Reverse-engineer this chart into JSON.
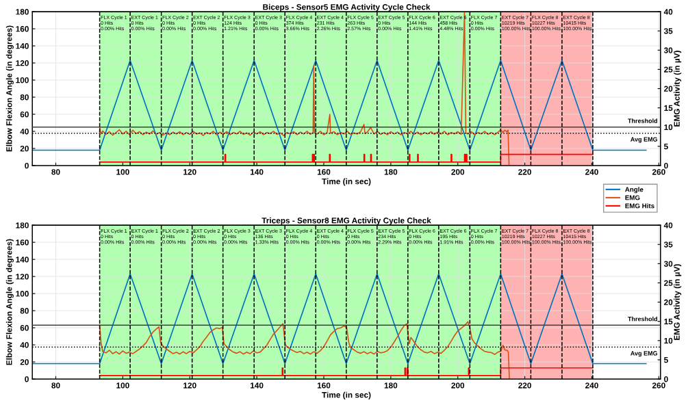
{
  "chart_data": [
    {
      "type": "line",
      "title": "Biceps - Sensor5 EMG Activity Cycle Check",
      "xlabel": "Time (in sec)",
      "ylabel": "Elbow Flexion Angle (in degrees)",
      "y2label": "EMG Activity (in µV)",
      "xlim": [
        73,
        260.5
      ],
      "xticks": [
        80,
        100,
        120,
        140,
        160,
        180,
        200,
        220,
        240,
        260
      ],
      "ylim": [
        0,
        180
      ],
      "yticks": [
        0,
        20,
        40,
        60,
        80,
        100,
        120,
        140,
        160,
        180
      ],
      "y2lim": [
        0,
        40
      ],
      "y2ticks": [
        0,
        5,
        10,
        15,
        20,
        25,
        30,
        35,
        40
      ],
      "grid": true,
      "legend": "bottom right",
      "marker": "none",
      "line_style": "solid",
      "series": [
        {
          "name": "Angle",
          "color": "#0072bd",
          "axis": "y",
          "x": [
            73,
            93.1,
            102.2,
            111.5,
            120.7,
            129.9,
            139.2,
            148.4,
            157.6,
            166.7,
            175.9,
            185.1,
            194.3,
            203.6,
            212.8,
            221.8,
            231.1,
            240.3,
            256.2
          ],
          "values": [
            18,
            18,
            123,
            18,
            123,
            18,
            123,
            18,
            123,
            18,
            123,
            18,
            123,
            18,
            123,
            18,
            123,
            18,
            18
          ]
        },
        {
          "name": "EMG",
          "color": "#d95319",
          "axis": "y2",
          "x": [
            93.1,
            93.4,
            94,
            95,
            96,
            97,
            98,
            99,
            100,
            101,
            102,
            103,
            104,
            105,
            106,
            107,
            108,
            109,
            110,
            111,
            112,
            113,
            114,
            115,
            116,
            117,
            118,
            119,
            120,
            121,
            122,
            123,
            124,
            125,
            126,
            127,
            128,
            129,
            130,
            131,
            132,
            133,
            134,
            135,
            136,
            137,
            138,
            139,
            140,
            141,
            142,
            143,
            144,
            145,
            146,
            147,
            148,
            149,
            150,
            151,
            152,
            153,
            154,
            155,
            156,
            156.8,
            157,
            157.2,
            158,
            159,
            160,
            161,
            161.8,
            162,
            163,
            164,
            165,
            166,
            167,
            168,
            169,
            170,
            171,
            172,
            172.3,
            173,
            174,
            175,
            176,
            177,
            178,
            179,
            180,
            181,
            182,
            183,
            184,
            185,
            186,
            187,
            188,
            189,
            190,
            191,
            192,
            193,
            194,
            195,
            196,
            197,
            198,
            199,
            200,
            201,
            202,
            202.4,
            203,
            204,
            205,
            206,
            207,
            208,
            209,
            210,
            211,
            212,
            212.8,
            213.5,
            214,
            214.6,
            215,
            215.3,
            240.3
          ],
          "values": [
            10.0,
            8.2,
            9.0,
            8.1,
            8.8,
            7.9,
            8.6,
            9.3,
            8.2,
            8.9,
            8.0,
            9.2,
            8.3,
            8.8,
            8.0,
            8.7,
            8.2,
            9.0,
            8.1,
            8.6,
            7.9,
            8.5,
            8.0,
            8.7,
            8.2,
            8.8,
            8.0,
            8.6,
            8.1,
            8.9,
            8.2,
            8.5,
            7.8,
            8.6,
            8.2,
            8.9,
            8.0,
            8.7,
            8.1,
            8.8,
            8.0,
            8.6,
            8.2,
            8.9,
            8.1,
            8.5,
            7.9,
            8.7,
            8.2,
            8.8,
            8.0,
            8.6,
            8.3,
            8.9,
            8.1,
            8.5,
            7.8,
            8.6,
            8.2,
            8.8,
            8.0,
            8.7,
            8.2,
            8.9,
            8.1,
            8.6,
            25.8,
            8.5,
            8.2,
            8.9,
            8.0,
            8.6,
            13.3,
            8.4,
            8.8,
            8.0,
            8.6,
            8.2,
            8.9,
            8.1,
            8.5,
            8.2,
            8.8,
            10.7,
            8.3,
            8.7,
            9.9,
            8.2,
            8.9,
            8.1,
            8.6,
            8.0,
            8.8,
            8.2,
            8.7,
            8.0,
            8.6,
            8.2,
            8.9,
            8.1,
            8.7,
            8.0,
            8.6,
            8.2,
            8.8,
            8.1,
            8.7,
            8.2,
            8.9,
            8.0,
            8.6,
            8.2,
            8.8,
            8.1,
            40,
            8.5,
            8.2,
            8.8,
            8.0,
            8.6,
            8.2,
            8.9,
            8.1,
            8.6,
            8.0,
            8.7,
            9.3,
            8.6,
            9.2,
            8.8,
            9.2,
            0,
            0
          ]
        },
        {
          "name": "EMG Hits",
          "color": "#ff0000",
          "axis": "y2",
          "x": [
            93.1,
            130.5,
            130.5,
            130.7,
            130.7,
            156.6,
            156.6,
            156.8,
            156.8,
            157.0,
            157.0,
            157.2,
            157.2,
            161.7,
            161.7,
            161.9,
            161.9,
            172.0,
            172.0,
            172.2,
            172.2,
            174.0,
            174.0,
            174.2,
            174.2,
            185.5,
            185.5,
            185.7,
            185.7,
            188.0,
            188.0,
            188.2,
            188.2,
            198.0,
            198.0,
            198.2,
            198.2,
            202.0,
            202.0,
            202.2,
            202.2,
            202.5,
            202.5,
            202.7,
            202.7,
            212.8,
            212.8,
            240.3
          ],
          "values": [
            0.9,
            0.9,
            2.9,
            2.9,
            0.9,
            0.9,
            2.9,
            2.9,
            0.9,
            0.9,
            2.9,
            2.9,
            0.9,
            0.9,
            2.9,
            2.9,
            0.9,
            0.9,
            2.9,
            2.9,
            0.9,
            0.9,
            2.9,
            2.9,
            0.9,
            0.9,
            2.9,
            2.9,
            0.9,
            0.9,
            2.9,
            2.9,
            0.9,
            0.9,
            2.9,
            2.9,
            0.9,
            0.9,
            2.9,
            2.9,
            0.9,
            0.9,
            2.9,
            2.9,
            0.9,
            0.9,
            2.9,
            2.9
          ]
        }
      ],
      "bands": [
        {
          "axis": "x",
          "from": 93.1,
          "to": 102.2,
          "color": "#00ff00",
          "label": "FLX Cycle 1\n0 Hits\n0.00% Hits"
        },
        {
          "axis": "x",
          "from": 102.2,
          "to": 111.5,
          "color": "#00ff00",
          "label": "EXT Cycle 1\n0 Hits\n0.00% Hits"
        },
        {
          "axis": "x",
          "from": 111.5,
          "to": 120.7,
          "color": "#00ff00",
          "label": "FLX Cycle 2\n0 Hits\n0.00% Hits"
        },
        {
          "axis": "x",
          "from": 120.7,
          "to": 129.9,
          "color": "#00ff00",
          "label": "EXT Cycle 2\n0 Hits\n0.00% Hits"
        },
        {
          "axis": "x",
          "from": 129.9,
          "to": 139.2,
          "color": "#00ff00",
          "label": "FLX Cycle 3\n124 Hits\n1.21% Hits"
        },
        {
          "axis": "x",
          "from": 139.2,
          "to": 148.4,
          "color": "#00ff00",
          "label": "EXT Cycle 3\n0 Hits\n0.00% Hits"
        },
        {
          "axis": "x",
          "from": 148.4,
          "to": 157.6,
          "color": "#00ff00",
          "label": "FLX Cycle 4\n374 Hits\n3.66% Hits"
        },
        {
          "axis": "x",
          "from": 157.6,
          "to": 166.7,
          "color": "#00ff00",
          "label": "EXT Cycle 4\n231 Hits\n2.26% Hits"
        },
        {
          "axis": "x",
          "from": 166.7,
          "to": 175.9,
          "color": "#00ff00",
          "label": "FLX Cycle 5\n263 Hits\n2.57% Hits"
        },
        {
          "axis": "x",
          "from": 175.9,
          "to": 185.1,
          "color": "#00ff00",
          "label": "EXT Cycle 5\n0 Hits\n0.00% Hits"
        },
        {
          "axis": "x",
          "from": 185.1,
          "to": 194.3,
          "color": "#00ff00",
          "label": "FLX Cycle 6\n144 Hits\n1.41% Hits"
        },
        {
          "axis": "x",
          "from": 194.3,
          "to": 203.6,
          "color": "#00ff00",
          "label": "EXT Cycle 6\n458 Hits\n4.48% Hits"
        },
        {
          "axis": "x",
          "from": 203.6,
          "to": 212.8,
          "color": "#00ff00",
          "label": "FLX Cycle 7\n0 Hits\n0.00% Hits"
        },
        {
          "axis": "x",
          "from": 212.8,
          "to": 221.8,
          "color": "#ff0000",
          "label": "EXT Cycle 7\n10219 Hits\n100.00% Hits"
        },
        {
          "axis": "x",
          "from": 221.8,
          "to": 231.1,
          "color": "#ff0000",
          "label": "FLX Cycle 8\n10227 Hits\n100.00% Hits"
        },
        {
          "axis": "x",
          "from": 231.1,
          "to": 240.3,
          "color": "#ff0000",
          "label": "EXT Cycle 8\n10415 Hits\n100.00% Hits"
        }
      ],
      "ref_lines": [
        {
          "axis": "y2",
          "value": 10,
          "label": "Threshold",
          "color": "#404040",
          "line_style": "solid"
        },
        {
          "axis": "y2",
          "value": 8.4,
          "label": "Avg EMG",
          "color": "#000000",
          "line_style": "dotted"
        },
        {
          "axis": "x",
          "value": 93.1,
          "color": "#000000",
          "line_style": "dashed"
        },
        {
          "axis": "x",
          "value": 102.2,
          "color": "#000000",
          "line_style": "dashed"
        },
        {
          "axis": "x",
          "value": 111.5,
          "color": "#000000",
          "line_style": "dashed"
        },
        {
          "axis": "x",
          "value": 120.7,
          "color": "#000000",
          "line_style": "dashed"
        },
        {
          "axis": "x",
          "value": 129.9,
          "color": "#000000",
          "line_style": "dashed"
        },
        {
          "axis": "x",
          "value": 139.2,
          "color": "#000000",
          "line_style": "dashed"
        },
        {
          "axis": "x",
          "value": 148.4,
          "color": "#000000",
          "line_style": "dashed"
        },
        {
          "axis": "x",
          "value": 157.6,
          "color": "#000000",
          "line_style": "dashed"
        },
        {
          "axis": "x",
          "value": 166.7,
          "color": "#000000",
          "line_style": "dashed"
        },
        {
          "axis": "x",
          "value": 175.9,
          "color": "#000000",
          "line_style": "dashed"
        },
        {
          "axis": "x",
          "value": 185.1,
          "color": "#000000",
          "line_style": "dashed"
        },
        {
          "axis": "x",
          "value": 194.3,
          "color": "#000000",
          "line_style": "dashed"
        },
        {
          "axis": "x",
          "value": 203.6,
          "color": "#000000",
          "line_style": "dashed"
        },
        {
          "axis": "x",
          "value": 212.8,
          "color": "#000000",
          "line_style": "dashed"
        },
        {
          "axis": "x",
          "value": 221.8,
          "color": "#000000",
          "line_style": "dashed"
        },
        {
          "axis": "x",
          "value": 231.1,
          "color": "#000000",
          "line_style": "dashed"
        },
        {
          "axis": "x",
          "value": 240.3,
          "color": "#000000",
          "line_style": "dashed"
        }
      ]
    },
    {
      "type": "line",
      "title": "Triceps - Sensor8 EMG Activity Cycle Check",
      "xlabel": "Time (in sec)",
      "ylabel": "Elbow Flexion Angle (in degrees)",
      "y2label": "EMG Activity (in µV)",
      "xlim": [
        73,
        260.5
      ],
      "xticks": [
        80,
        100,
        120,
        140,
        160,
        180,
        200,
        220,
        240,
        260
      ],
      "ylim": [
        0,
        180
      ],
      "yticks": [
        0,
        20,
        40,
        60,
        80,
        100,
        120,
        140,
        160,
        180
      ],
      "y2lim": [
        0,
        40
      ],
      "y2ticks": [
        0,
        5,
        10,
        15,
        20,
        25,
        30,
        35,
        40
      ],
      "grid": true,
      "marker": "none",
      "line_style": "solid",
      "series": [
        {
          "color": "#0072bd",
          "axis": "y",
          "x": [
            73,
            93.1,
            102.2,
            111.5,
            120.7,
            129.9,
            139.2,
            148.4,
            157.6,
            166.7,
            175.9,
            185.1,
            194.3,
            203.6,
            212.8,
            221.8,
            231.1,
            240.3,
            256.2
          ],
          "values": [
            18,
            18,
            123,
            18,
            123,
            18,
            123,
            18,
            123,
            18,
            123,
            18,
            123,
            18,
            123,
            18,
            123,
            18,
            18
          ]
        },
        {
          "color": "#d95319",
          "axis": "y2",
          "x": [
            93.1,
            93.5,
            94,
            95,
            96,
            97,
            98,
            99,
            100,
            101,
            102,
            103,
            104,
            105,
            106,
            107,
            108,
            109,
            110,
            110.8,
            111.3,
            112,
            113,
            114,
            115,
            116,
            117,
            118,
            119,
            120,
            121,
            122,
            123,
            124,
            125,
            126,
            127,
            128,
            129,
            129.7,
            130.2,
            131,
            132,
            133,
            134,
            135,
            136,
            137,
            138,
            139,
            140,
            141,
            142,
            143,
            144,
            145,
            146,
            147,
            147.8,
            148.5,
            149,
            150,
            151,
            152,
            153,
            154,
            155,
            156,
            157,
            158,
            159,
            160,
            161,
            162,
            163,
            164,
            165,
            166,
            166.8,
            167.5,
            168,
            169,
            170,
            171,
            172,
            173,
            174,
            175,
            176,
            177,
            178,
            179,
            180,
            181,
            182,
            183,
            184,
            184.8,
            185.5,
            186,
            187,
            188,
            189,
            190,
            191,
            192,
            193,
            194,
            195,
            196,
            197,
            198,
            199,
            200,
            201,
            202,
            203,
            203.6,
            204.2,
            205,
            206,
            207,
            208,
            209,
            210,
            211,
            212,
            212.8,
            213.5,
            214,
            214.8,
            215.1,
            215.4,
            240.3
          ],
          "values": [
            14.0,
            9.5,
            7.2,
            6.8,
            7.5,
            6.6,
            7.1,
            6.5,
            7.3,
            6.7,
            7.0,
            6.6,
            7.2,
            7.8,
            8.6,
            9.5,
            11.0,
            12.2,
            13.0,
            13.6,
            9.5,
            8.6,
            7.8,
            7.2,
            6.6,
            7.0,
            6.5,
            7.1,
            6.6,
            7.2,
            6.8,
            7.6,
            8.4,
            9.8,
            10.9,
            12.1,
            12.8,
            13.3,
            13.1,
            13.5,
            9.2,
            8.4,
            7.6,
            7.0,
            6.7,
            7.1,
            6.5,
            7.0,
            6.6,
            7.3,
            6.8,
            7.0,
            7.9,
            8.8,
            10.3,
            11.7,
            12.6,
            13.6,
            14.4,
            9.0,
            8.4,
            7.8,
            7.3,
            6.9,
            7.2,
            6.6,
            7.0,
            6.5,
            7.1,
            6.7,
            7.4,
            8.4,
            9.9,
            11.5,
            12.4,
            13.1,
            13.3,
            13.8,
            13.5,
            9.3,
            8.2,
            7.6,
            7.0,
            6.7,
            7.1,
            6.6,
            7.0,
            6.5,
            7.2,
            6.8,
            7.0,
            7.4,
            8.3,
            9.6,
            11.0,
            12.6,
            13.9,
            14.4,
            9.2,
            10.8,
            9.6,
            8.4,
            7.6,
            7.0,
            6.8,
            7.2,
            6.6,
            7.0,
            6.7,
            7.5,
            8.4,
            9.8,
            11.3,
            12.5,
            13.2,
            13.9,
            14.9,
            13.4,
            10.5,
            9.4,
            8.6,
            7.8,
            7.2,
            7.0,
            6.9,
            6.4,
            7.0,
            7.2,
            8.8,
            7.6,
            7.4,
            7.0,
            0,
            0
          ]
        },
        {
          "color": "#ff0000",
          "axis": "y2",
          "x": [
            93.1,
            147.6,
            147.6,
            147.8,
            147.8,
            184.2,
            184.2,
            184.4,
            184.4,
            184.9,
            184.9,
            185.1,
            185.1,
            203.2,
            203.2,
            203.4,
            203.4,
            212.8,
            212.8,
            240.3
          ],
          "values": [
            0.9,
            0.9,
            2.9,
            2.9,
            0.9,
            0.9,
            2.9,
            2.9,
            0.9,
            0.9,
            2.9,
            2.9,
            0.9,
            0.9,
            2.9,
            2.9,
            0.9,
            0.9,
            2.9,
            2.9
          ]
        }
      ],
      "bands": [
        {
          "axis": "x",
          "from": 93.1,
          "to": 102.2,
          "color": "#00ff00",
          "label": "FLX Cycle 1\n0 Hits\n0.00% Hits"
        },
        {
          "axis": "x",
          "from": 102.2,
          "to": 111.5,
          "color": "#00ff00",
          "label": "EXT Cycle 1\n0 Hits\n0.00% Hits"
        },
        {
          "axis": "x",
          "from": 111.5,
          "to": 120.7,
          "color": "#00ff00",
          "label": "FLX Cycle 2\n0 Hits\n0.00% Hits"
        },
        {
          "axis": "x",
          "from": 120.7,
          "to": 129.9,
          "color": "#00ff00",
          "label": "EXT Cycle 2\n0 Hits\n0.00% Hits"
        },
        {
          "axis": "x",
          "from": 129.9,
          "to": 139.2,
          "color": "#00ff00",
          "label": "FLX Cycle 3\n0 Hits\n0.00% Hits"
        },
        {
          "axis": "x",
          "from": 139.2,
          "to": 148.4,
          "color": "#00ff00",
          "label": "EXT Cycle 3\n136 Hits\n1.33% Hits"
        },
        {
          "axis": "x",
          "from": 148.4,
          "to": 157.6,
          "color": "#00ff00",
          "label": "FLX Cycle 4\n0 Hits\n0.00% Hits"
        },
        {
          "axis": "x",
          "from": 157.6,
          "to": 166.7,
          "color": "#00ff00",
          "label": "EXT Cycle 4\n0 Hits\n0.00% Hits"
        },
        {
          "axis": "x",
          "from": 166.7,
          "to": 175.9,
          "color": "#00ff00",
          "label": "FLX Cycle 5\n0 Hits\n0.00% Hits"
        },
        {
          "axis": "x",
          "from": 175.9,
          "to": 185.1,
          "color": "#00ff00",
          "label": "EXT Cycle 5\n234 Hits\n2.29% Hits"
        },
        {
          "axis": "x",
          "from": 185.1,
          "to": 194.3,
          "color": "#00ff00",
          "label": "FLX Cycle 6\n0 Hits\n0.00% Hits"
        },
        {
          "axis": "x",
          "from": 194.3,
          "to": 203.6,
          "color": "#00ff00",
          "label": "EXT Cycle 6\n195 Hits\n1.91% Hits"
        },
        {
          "axis": "x",
          "from": 203.6,
          "to": 212.8,
          "color": "#00ff00",
          "label": "FLX Cycle 7\n0 Hits\n0.00% Hits"
        },
        {
          "axis": "x",
          "from": 212.8,
          "to": 221.8,
          "color": "#ff0000",
          "label": "EXT Cycle 7\n10219 Hits\n100.00% Hits"
        },
        {
          "axis": "x",
          "from": 221.8,
          "to": 231.1,
          "color": "#ff0000",
          "label": "FLX Cycle 8\n10227 Hits\n100.00% Hits"
        },
        {
          "axis": "x",
          "from": 231.1,
          "to": 240.3,
          "color": "#ff0000",
          "label": "EXT Cycle 8\n10415 Hits\n100.00% Hits"
        }
      ],
      "ref_lines": [
        {
          "axis": "y2",
          "value": 14,
          "label": "Threshold",
          "color": "#404040",
          "line_style": "solid"
        },
        {
          "axis": "y2",
          "value": 8.3,
          "label": "Avg EMG",
          "color": "#000000",
          "line_style": "dotted"
        },
        {
          "axis": "x",
          "value": 93.1,
          "color": "#000000",
          "line_style": "dashed"
        },
        {
          "axis": "x",
          "value": 102.2,
          "color": "#000000",
          "line_style": "dashed"
        },
        {
          "axis": "x",
          "value": 111.5,
          "color": "#000000",
          "line_style": "dashed"
        },
        {
          "axis": "x",
          "value": 120.7,
          "color": "#000000",
          "line_style": "dashed"
        },
        {
          "axis": "x",
          "value": 129.9,
          "color": "#000000",
          "line_style": "dashed"
        },
        {
          "axis": "x",
          "value": 139.2,
          "color": "#000000",
          "line_style": "dashed"
        },
        {
          "axis": "x",
          "value": 148.4,
          "color": "#000000",
          "line_style": "dashed"
        },
        {
          "axis": "x",
          "value": 157.6,
          "color": "#000000",
          "line_style": "dashed"
        },
        {
          "axis": "x",
          "value": 166.7,
          "color": "#000000",
          "line_style": "dashed"
        },
        {
          "axis": "x",
          "value": 175.9,
          "color": "#000000",
          "line_style": "dashed"
        },
        {
          "axis": "x",
          "value": 185.1,
          "color": "#000000",
          "line_style": "dashed"
        },
        {
          "axis": "x",
          "value": 194.3,
          "color": "#000000",
          "line_style": "dashed"
        },
        {
          "axis": "x",
          "value": 203.6,
          "color": "#000000",
          "line_style": "dashed"
        },
        {
          "axis": "x",
          "value": 212.8,
          "color": "#000000",
          "line_style": "dashed"
        },
        {
          "axis": "x",
          "value": 221.8,
          "color": "#000000",
          "line_style": "dashed"
        },
        {
          "axis": "x",
          "value": 231.1,
          "color": "#000000",
          "line_style": "dashed"
        },
        {
          "axis": "x",
          "value": 240.3,
          "color": "#000000",
          "line_style": "dashed"
        }
      ]
    }
  ]
}
